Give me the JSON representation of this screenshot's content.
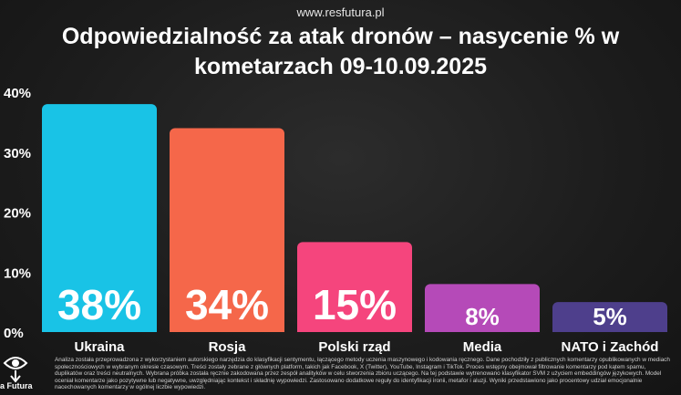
{
  "source_url": "www.resfutura.pl",
  "chart_data": {
    "type": "bar",
    "title": "Odpowiedzialność za atak dronów – nasycenie % w kometarzach 09-10.09.2025",
    "title_lines": [
      "Odpowiedzialność za atak dronów – nasycenie % w",
      "kometarzach 09-10.09.2025"
    ],
    "categories": [
      "Ukraina",
      "Rosja",
      "Polski rząd",
      "Media",
      "NATO i Zachód"
    ],
    "values": [
      38,
      34,
      15,
      8,
      5
    ],
    "data_labels": [
      "38%",
      "34%",
      "15%",
      "8%",
      "5%"
    ],
    "bar_colors": [
      "#19c3e6",
      "#f5674a",
      "#f5457d",
      "#b54ab8",
      "#4e3f8c"
    ],
    "ylim": [
      0,
      40
    ],
    "yticks": [
      0,
      10,
      20,
      30,
      40
    ],
    "ytick_labels": [
      "0%",
      "10%",
      "20%",
      "30%",
      "40%"
    ],
    "grid": false,
    "legend": "none"
  },
  "footer": {
    "logo_text": "a Futura",
    "logo_icon": "eye-icon",
    "note": "Analiza została przeprowadzona z wykorzystaniem autorskiego narzędzia do klasyfikacji sentymentu, łączącego metody uczenia maszynowego i kodowania ręcznego. Dane pochodziły z publicznych komentarzy opublikowanych w mediach społecznościowych w wybranym okresie czasowym. Treści zostały zebrane z głównych platform, takich jak Facebook, X (Twitter), YouTube, Instagram i TikTok. Proces wstępny obejmował filtrowanie komentarzy pod kątem spamu, duplikatów oraz treści neutralnych. Wybrana próbka została ręcznie zakodowana przez zespół analityków w celu stworzenia zbioru uczącego. Na tej podstawie wytrenowano klasyfikator SVM z użyciem embeddingów językowych. Model oceniał komentarze jako pozytywne lub negatywne, uwzględniając kontekst i składnię wypowiedzi. Zastosowano dodatkowe reguły do identyfikacji ironii, metafor i aluzji. Wyniki przedstawiono jako procentowy udział emocjonalnie nacechowanych komentarzy w ogólnej liczbie wypowiedzi."
  }
}
